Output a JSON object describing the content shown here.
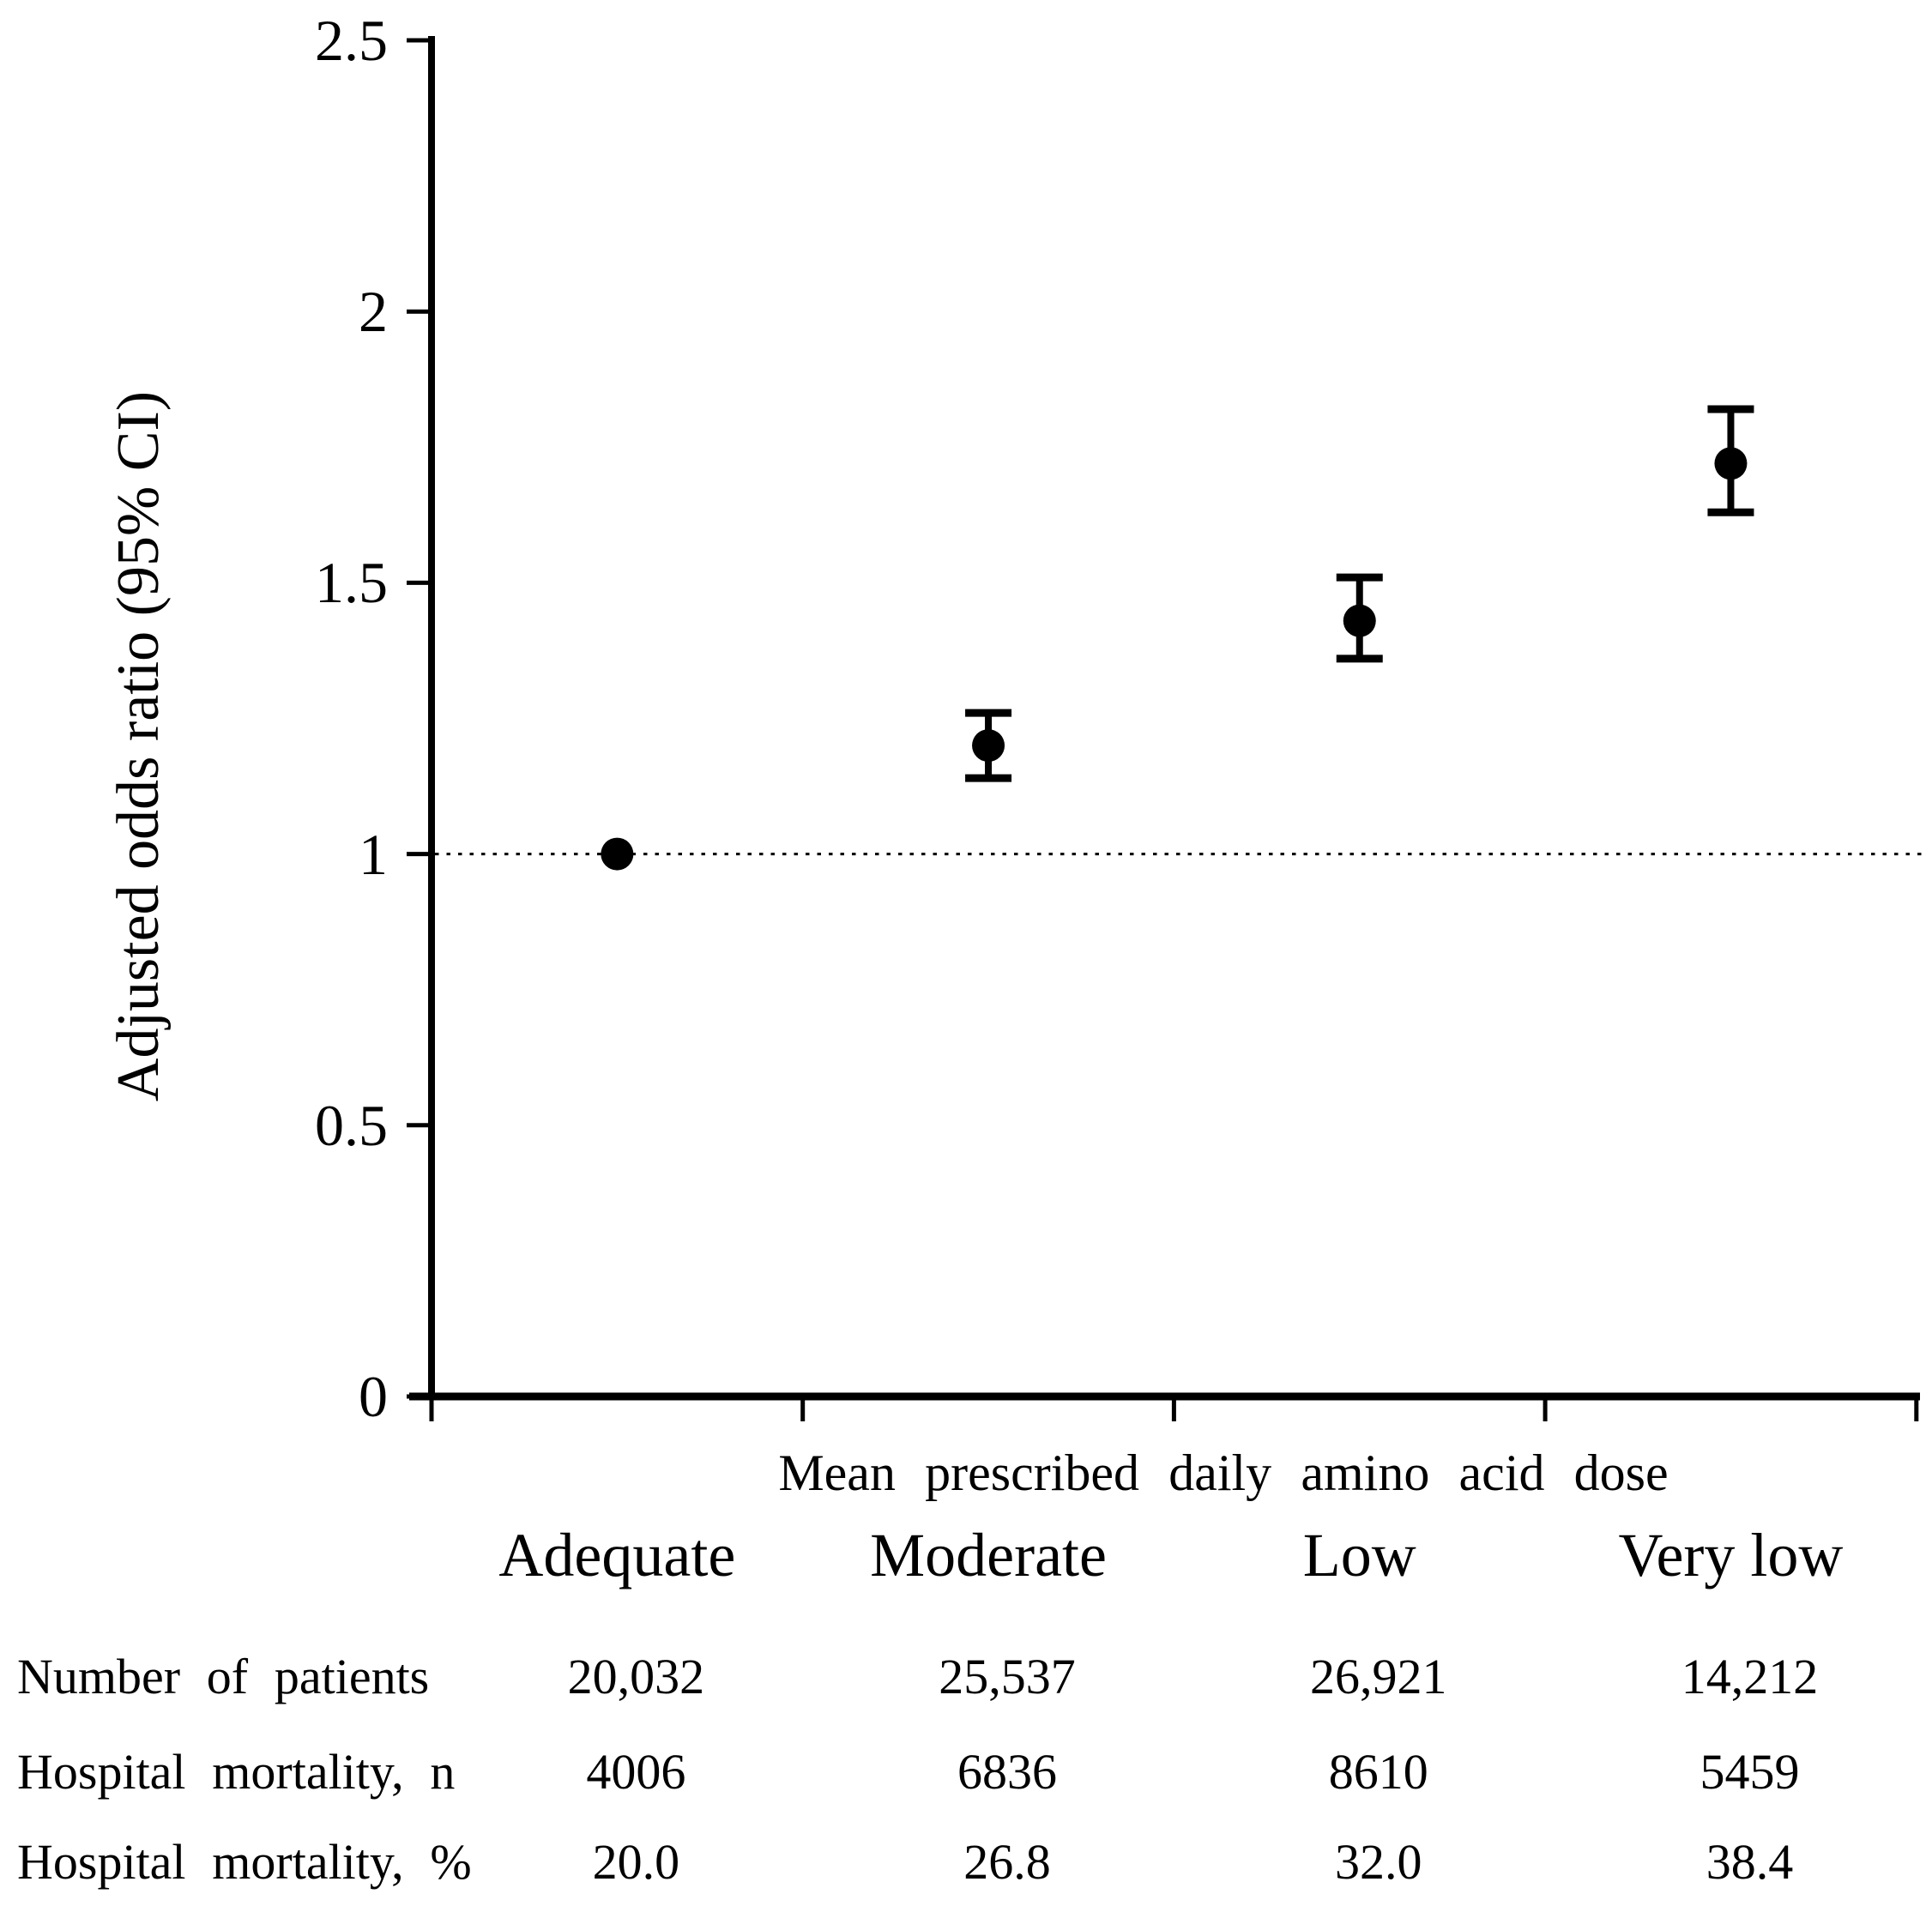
{
  "figure": {
    "background": "#ffffff",
    "ink": "#000000"
  },
  "chart_data": {
    "type": "scatter",
    "subtype": "point-estimates-with-95ci-error-bars",
    "title": "",
    "ylabel": "Adjusted odds ratio (95% CI)",
    "xlabel": "Mean prescribed daily amino acid dose",
    "ylim": [
      0,
      2.5
    ],
    "yticks": [
      0,
      0.5,
      1,
      1.5,
      2,
      2.5
    ],
    "ytick_labels": [
      "0",
      "0.5",
      "1",
      "1.5",
      "2",
      "2.5"
    ],
    "grid": false,
    "legend_position": "none",
    "reference_line_y": 1.0,
    "reference_line_style": "dotted",
    "categories": [
      "Adequate",
      "Moderate",
      "Low",
      "Very low"
    ],
    "series": [
      {
        "name": "Adjusted odds ratio (95% CI)",
        "marker": "filled-circle",
        "color": "#000000",
        "points": [
          {
            "category": "Adequate",
            "or": 1.0,
            "ci_low": 1.0,
            "ci_high": 1.0,
            "reference": true
          },
          {
            "category": "Moderate",
            "or": 1.2,
            "ci_low": 1.14,
            "ci_high": 1.26,
            "reference": false
          },
          {
            "category": "Low",
            "or": 1.43,
            "ci_low": 1.36,
            "ci_high": 1.51,
            "reference": false
          },
          {
            "category": "Very low",
            "or": 1.72,
            "ci_low": 1.63,
            "ci_high": 1.82,
            "reference": false
          }
        ]
      }
    ]
  },
  "table": {
    "rows": [
      {
        "label": "Number of patients",
        "values": [
          "20,032",
          "25,537",
          "26,921",
          "14,212"
        ]
      },
      {
        "label": "Hospital mortality, n",
        "values": [
          "4006",
          "6836",
          "8610",
          "5459"
        ]
      },
      {
        "label": "Hospital mortality, %",
        "values": [
          "20.0",
          "26.8",
          "32.0",
          "38.4"
        ]
      }
    ]
  }
}
